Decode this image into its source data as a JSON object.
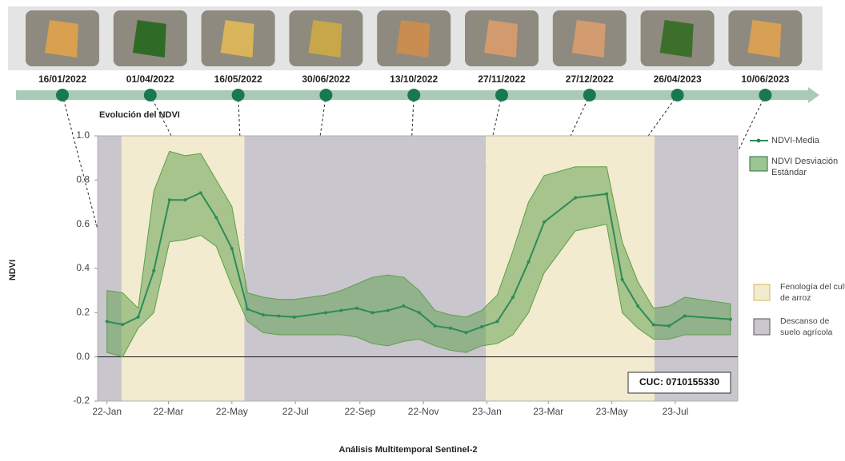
{
  "chart_data": {
    "type": "line",
    "title": "Evolución del NDVI",
    "y_label": "NDVI",
    "x_label": "Análisis Multitemporal Sentinel-2",
    "annotation": "CUC: 0710155330",
    "xlim": [
      "2021-12-23",
      "2023-08-30"
    ],
    "xticks": [
      {
        "value": "2022-01-01",
        "label": "22-Jan"
      },
      {
        "value": "2022-03-01",
        "label": "22-Mar"
      },
      {
        "value": "2022-05-01",
        "label": "22-May"
      },
      {
        "value": "2022-07-01",
        "label": "22-Jul"
      },
      {
        "value": "2022-09-01",
        "label": "22-Sep"
      },
      {
        "value": "2022-11-01",
        "label": "22-Nov"
      },
      {
        "value": "2023-01-01",
        "label": "23-Jan"
      },
      {
        "value": "2023-03-01",
        "label": "23-Mar"
      },
      {
        "value": "2023-05-01",
        "label": "23-May"
      },
      {
        "value": "2023-07-01",
        "label": "23-Jul"
      }
    ],
    "ylim": [
      -0.2,
      1.0
    ],
    "yticks": [
      {
        "value": 1,
        "label": "1.0"
      },
      0.8,
      0.6,
      0.4,
      0.2,
      {
        "value": 0,
        "label": "0.0"
      },
      -0.2
    ],
    "zero_line": true,
    "x": [
      "2022-01-01",
      "2022-01-16",
      "2022-01-31",
      "2022-02-15",
      "2022-03-02",
      "2022-03-17",
      "2022-04-01",
      "2022-04-16",
      "2022-05-01",
      "2022-05-16",
      "2022-05-31",
      "2022-06-15",
      "2022-06-30",
      "2022-07-30",
      "2022-08-14",
      "2022-08-29",
      "2022-09-13",
      "2022-09-28",
      "2022-10-13",
      "2022-10-28",
      "2022-11-12",
      "2022-11-27",
      "2022-12-12",
      "2022-12-27",
      "2023-01-11",
      "2023-01-26",
      "2023-02-10",
      "2023-02-25",
      "2023-03-27",
      "2023-04-26",
      "2023-05-11",
      "2023-05-26",
      "2023-06-10",
      "2023-06-25",
      "2023-07-10",
      "2023-08-23"
    ],
    "series": [
      {
        "name": "NDVI-Media",
        "color": "#2e8b57",
        "values": [
          0.16,
          0.146,
          0.18,
          0.39,
          0.71,
          0.71,
          0.742,
          0.63,
          0.49,
          0.216,
          0.19,
          0.185,
          0.18,
          0.2,
          0.21,
          0.22,
          0.2,
          0.21,
          0.23,
          0.2,
          0.14,
          0.13,
          0.11,
          0.136,
          0.16,
          0.27,
          0.43,
          0.61,
          0.72,
          0.737,
          0.35,
          0.23,
          0.145,
          0.14,
          0.185,
          0.17
        ]
      }
    ],
    "band": {
      "name": "NDVI Desviación Estándar",
      "color": "#5c9e4a",
      "upper": [
        0.3,
        0.29,
        0.22,
        0.75,
        0.93,
        0.91,
        0.92,
        0.8,
        0.68,
        0.29,
        0.27,
        0.26,
        0.26,
        0.28,
        0.3,
        0.33,
        0.36,
        0.37,
        0.36,
        0.3,
        0.21,
        0.19,
        0.18,
        0.21,
        0.28,
        0.48,
        0.7,
        0.82,
        0.86,
        0.86,
        0.52,
        0.34,
        0.22,
        0.23,
        0.27,
        0.24
      ],
      "lower": [
        0.02,
        0.0,
        0.13,
        0.2,
        0.52,
        0.53,
        0.55,
        0.5,
        0.32,
        0.16,
        0.11,
        0.1,
        0.1,
        0.1,
        0.1,
        0.09,
        0.06,
        0.05,
        0.07,
        0.08,
        0.05,
        0.03,
        0.02,
        0.05,
        0.06,
        0.1,
        0.2,
        0.38,
        0.57,
        0.6,
        0.2,
        0.13,
        0.08,
        0.08,
        0.1,
        0.1
      ]
    },
    "highlights": [
      {
        "date": "16/01/2022",
        "value_label": "0,146"
      },
      {
        "date": "01/04/2022",
        "value_label": "0,742"
      },
      {
        "date": "16/05/2022",
        "value_label": "0,216"
      },
      {
        "date": "30/06/2022",
        "value_label": "0,18"
      },
      {
        "date": "13/10/2022",
        "value_label": "0,23"
      },
      {
        "date": "27/11/2022",
        "value_label": "0,13"
      },
      {
        "date": "27/12/2022",
        "value_label": "0,136"
      },
      {
        "date": "26/04/2023",
        "value_label": "0,737"
      },
      {
        "date": "10/06/2023",
        "value_label": "0,145"
      }
    ],
    "periods_legend": [
      {
        "name": "Fenología del cultivo de arroz",
        "color": "#f3ebcf"
      },
      {
        "name": "Descanso de suelo agrícola",
        "color": "#c9c6cd"
      }
    ],
    "periods": [
      {
        "start": "2021-12-23",
        "end": "2022-01-15",
        "kind": 1
      },
      {
        "start": "2022-01-15",
        "end": "2022-05-13",
        "kind": 0
      },
      {
        "start": "2022-05-13",
        "end": "2022-12-31",
        "kind": 1
      },
      {
        "start": "2022-12-31",
        "end": "2023-06-11",
        "kind": 0
      },
      {
        "start": "2023-06-11",
        "end": "2023-08-30",
        "kind": 1
      }
    ]
  }
}
